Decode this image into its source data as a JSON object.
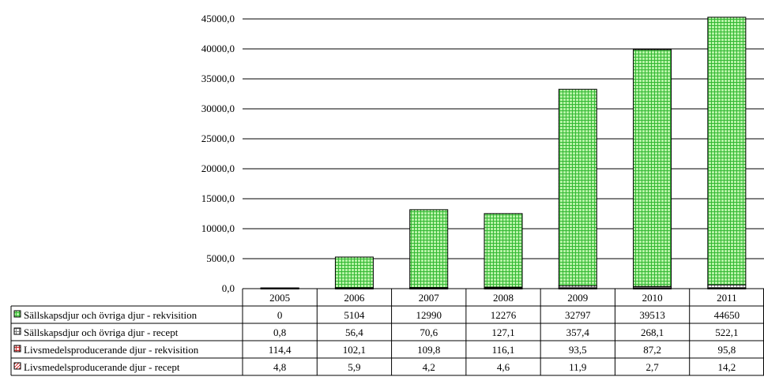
{
  "chart_data": {
    "type": "bar",
    "stacked": true,
    "title": "",
    "xlabel": "",
    "ylabel": "",
    "ylim": [
      0,
      45000
    ],
    "y_tick_labels": [
      "0,0",
      "5000,0",
      "10000,0",
      "15000,0",
      "20000,0",
      "25000,0",
      "30000,0",
      "35000,0",
      "40000,0",
      "45000,0"
    ],
    "categories": [
      "2005",
      "2006",
      "2007",
      "2008",
      "2009",
      "2010",
      "2011"
    ],
    "grid": "horizontal",
    "legend_placement": "data-table",
    "series": [
      {
        "name": "Sällskapsdjur och övriga djur - rekvisition",
        "values": [
          0,
          5104,
          12990,
          12276,
          32797,
          39513,
          44650
        ],
        "labels": [
          "0",
          "5104",
          "12990",
          "12276",
          "32797",
          "39513",
          "44650"
        ],
        "fill": "#b6f2a6",
        "pattern_color": "#33b833",
        "pattern": "grid"
      },
      {
        "name": "Sällskapsdjur och övriga djur - recept",
        "values": [
          0.8,
          56.4,
          70.6,
          127.1,
          357.4,
          268.1,
          522.1
        ],
        "labels": [
          "0,8",
          "56,4",
          "70,6",
          "127,1",
          "357,4",
          "268,1",
          "522,1"
        ],
        "fill": "#ffffff",
        "pattern_color": "#808080",
        "pattern": "grid"
      },
      {
        "name": "Livsmedelsproducerande djur - rekvisition",
        "values": [
          114.4,
          102.1,
          109.8,
          116.1,
          93.5,
          87.2,
          95.8
        ],
        "labels": [
          "114,4",
          "102,1",
          "109,8",
          "116,1",
          "93,5",
          "87,2",
          "95,8"
        ],
        "fill": "#ffe0e0",
        "pattern_color": "#c03030",
        "pattern": "grid"
      },
      {
        "name": "Livsmedelsproducerande djur - recept",
        "values": [
          4.8,
          5.9,
          4.2,
          4.6,
          11.9,
          2.7,
          14.2
        ],
        "labels": [
          "4,8",
          "5,9",
          "4,2",
          "4,6",
          "11,9",
          "2,7",
          "14,2"
        ],
        "fill": "#ffffff",
        "pattern_color": "#e02020",
        "pattern": "diagonal"
      }
    ]
  }
}
